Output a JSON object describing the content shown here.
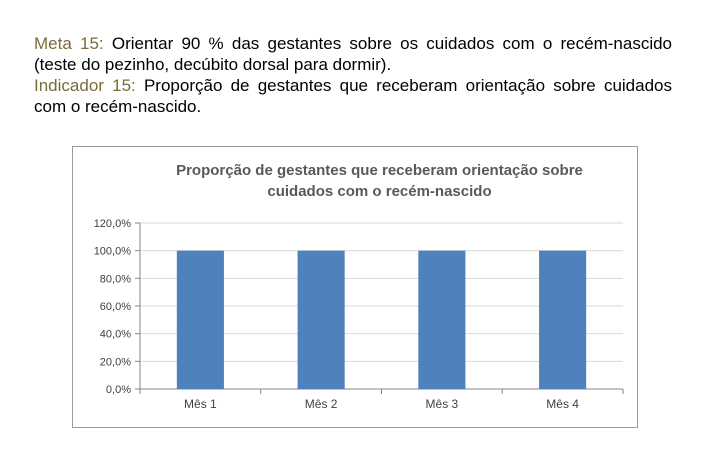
{
  "intro": {
    "meta_label": "Meta 15:",
    "meta_text": " Orientar 90 % das gestantes sobre os cuidados com o recém-nascido (teste do pezinho, decúbito dorsal para dormir).",
    "indicador_label": "Indicador 15:",
    "indicador_text": " Proporção de gestantes que receberam orientação sobre cuidados com o recém-nascido."
  },
  "colors": {
    "label": "#7b6a3a",
    "bar": "#4f81bd",
    "title": "#595959",
    "grid": "#d9d9d9",
    "axis_text": "#404040"
  },
  "chart_data": {
    "type": "bar",
    "title": "Proporção de gestantes que receberam orientação sobre cuidados com o recém-nascido",
    "title_lines": [
      "Proporção de gestantes que receberam orientação sobre",
      "cuidados com o recém-nascido"
    ],
    "categories": [
      "Mês 1",
      "Mês 2",
      "Mês 3",
      "Mês 4"
    ],
    "values": [
      100,
      100,
      100,
      100
    ],
    "ylim": [
      0,
      120
    ],
    "ystep": 20,
    "ytick_labels": [
      "0,0%",
      "20,0%",
      "40,0%",
      "60,0%",
      "80,0%",
      "100,0%",
      "120,0%"
    ],
    "grid": true,
    "legend": "none",
    "xlabel": "",
    "ylabel": ""
  }
}
